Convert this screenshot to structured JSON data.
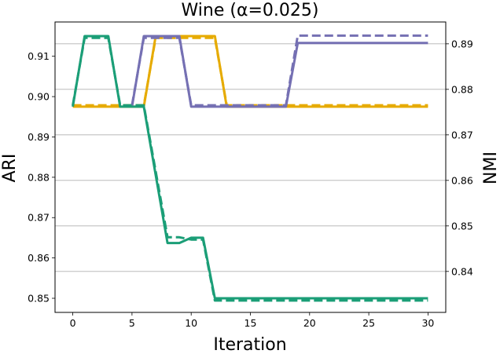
{
  "chart_data": {
    "type": "line",
    "title": "Wine (α=0.025)",
    "xlabel": "Iteration",
    "ylabel": "ARI",
    "ylabel_right": "NMI",
    "xlim": [
      -1.5,
      31.5
    ],
    "ylim": [
      0.8465,
      0.9185
    ],
    "ylim_right": [
      0.831,
      0.8948
    ],
    "x_ticks": [
      0,
      5,
      10,
      15,
      20,
      25,
      30
    ],
    "y_ticks": [
      0.85,
      0.86,
      0.87,
      0.88,
      0.89,
      0.9,
      0.91
    ],
    "y_tick_labels": [
      "0.85",
      "0.86",
      "0.87",
      "0.88",
      "0.89",
      "0.90",
      "0.91"
    ],
    "y_ticks_right": [
      0.84,
      0.85,
      0.86,
      0.87,
      0.88,
      0.89
    ],
    "y_ticks_right_labels": [
      "0.84",
      "0.85",
      "0.86",
      "0.87",
      "0.88",
      "0.89"
    ],
    "grid": "horizontal lines at right-axis ticks",
    "legend": "none",
    "series": [
      {
        "axis": "left",
        "style": "solid",
        "color": "#e6ab02",
        "x": [
          0,
          6,
          7,
          12,
          13,
          30
        ],
        "y": [
          0.8975,
          0.8975,
          0.915,
          0.915,
          0.8975,
          0.8975
        ]
      },
      {
        "axis": "right",
        "style": "dashed",
        "color": "#e6ab02",
        "x": [
          0,
          6,
          7,
          12,
          13,
          30
        ],
        "y": [
          0.8765,
          0.8765,
          0.8913,
          0.8913,
          0.8765,
          0.8765
        ]
      },
      {
        "axis": "left",
        "style": "solid",
        "color": "#7570b3",
        "x": [
          5,
          6,
          9,
          10,
          18,
          19,
          30
        ],
        "y": [
          0.8975,
          0.915,
          0.915,
          0.8975,
          0.8975,
          0.9133,
          0.9133
        ]
      },
      {
        "axis": "right",
        "style": "dashed",
        "color": "#7570b3",
        "x": [
          5,
          6,
          9,
          10,
          18,
          19,
          30
        ],
        "y": [
          0.8765,
          0.8913,
          0.8913,
          0.8765,
          0.8765,
          0.8918,
          0.8918
        ]
      },
      {
        "axis": "left",
        "style": "solid",
        "color": "#1b9e77",
        "x": [
          0,
          1,
          3,
          4,
          6,
          8,
          9,
          10,
          11,
          12,
          30
        ],
        "y": [
          0.8975,
          0.915,
          0.915,
          0.8975,
          0.8975,
          0.8637,
          0.8637,
          0.865,
          0.865,
          0.85,
          0.85
        ]
      },
      {
        "axis": "right",
        "style": "dashed",
        "color": "#1b9e77",
        "x": [
          0,
          1,
          3,
          4,
          6,
          8,
          9,
          10,
          11,
          12,
          30
        ],
        "y": [
          0.8765,
          0.8913,
          0.8913,
          0.8765,
          0.8765,
          0.8475,
          0.8475,
          0.847,
          0.847,
          0.8336,
          0.8336
        ]
      }
    ]
  }
}
